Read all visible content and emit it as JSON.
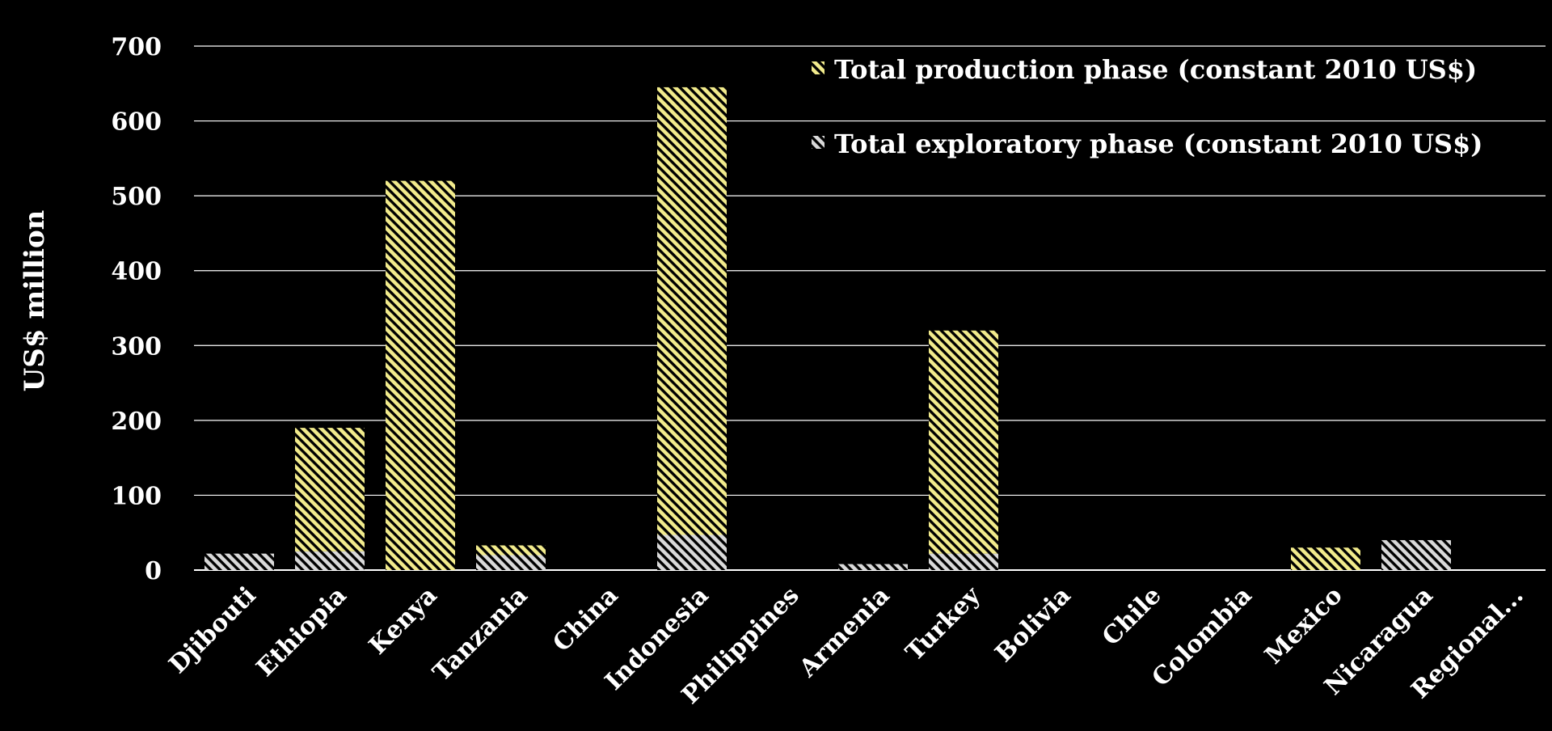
{
  "chart_data": {
    "type": "bar",
    "stacked": true,
    "categories": [
      "Djibouti",
      "Ethiopia",
      "Kenya",
      "Tanzania",
      "China",
      "Indonesia",
      "Philippines",
      "Armenia",
      "Turkey",
      "Bolivia",
      "Chile",
      "Colombia",
      "Mexico",
      "Nicaragua",
      "Regional..."
    ],
    "series": [
      {
        "name": "Total exploratory phase (constant 2010 US$)",
        "color": "#d9d9d9",
        "pattern": "diagonal-stripes",
        "values": [
          22,
          25,
          0,
          20,
          0,
          47,
          0,
          8,
          22,
          0,
          0,
          0,
          0,
          40,
          0
        ]
      },
      {
        "name": "Total production phase (constant 2010 US$)",
        "color": "#f2eb8c",
        "pattern": "diagonal-stripes",
        "values": [
          0,
          165,
          520,
          13,
          0,
          598,
          0,
          0,
          298,
          0,
          0,
          0,
          30,
          0,
          0
        ]
      }
    ],
    "ylabel": "US$ million",
    "ylim": [
      0,
      700
    ],
    "yticks": [
      "0",
      "100",
      "200",
      "300",
      "400",
      "500",
      "600",
      "700"
    ],
    "grid": true,
    "legend": "top-right",
    "legend_order": [
      1,
      0
    ],
    "background": "#000000"
  }
}
